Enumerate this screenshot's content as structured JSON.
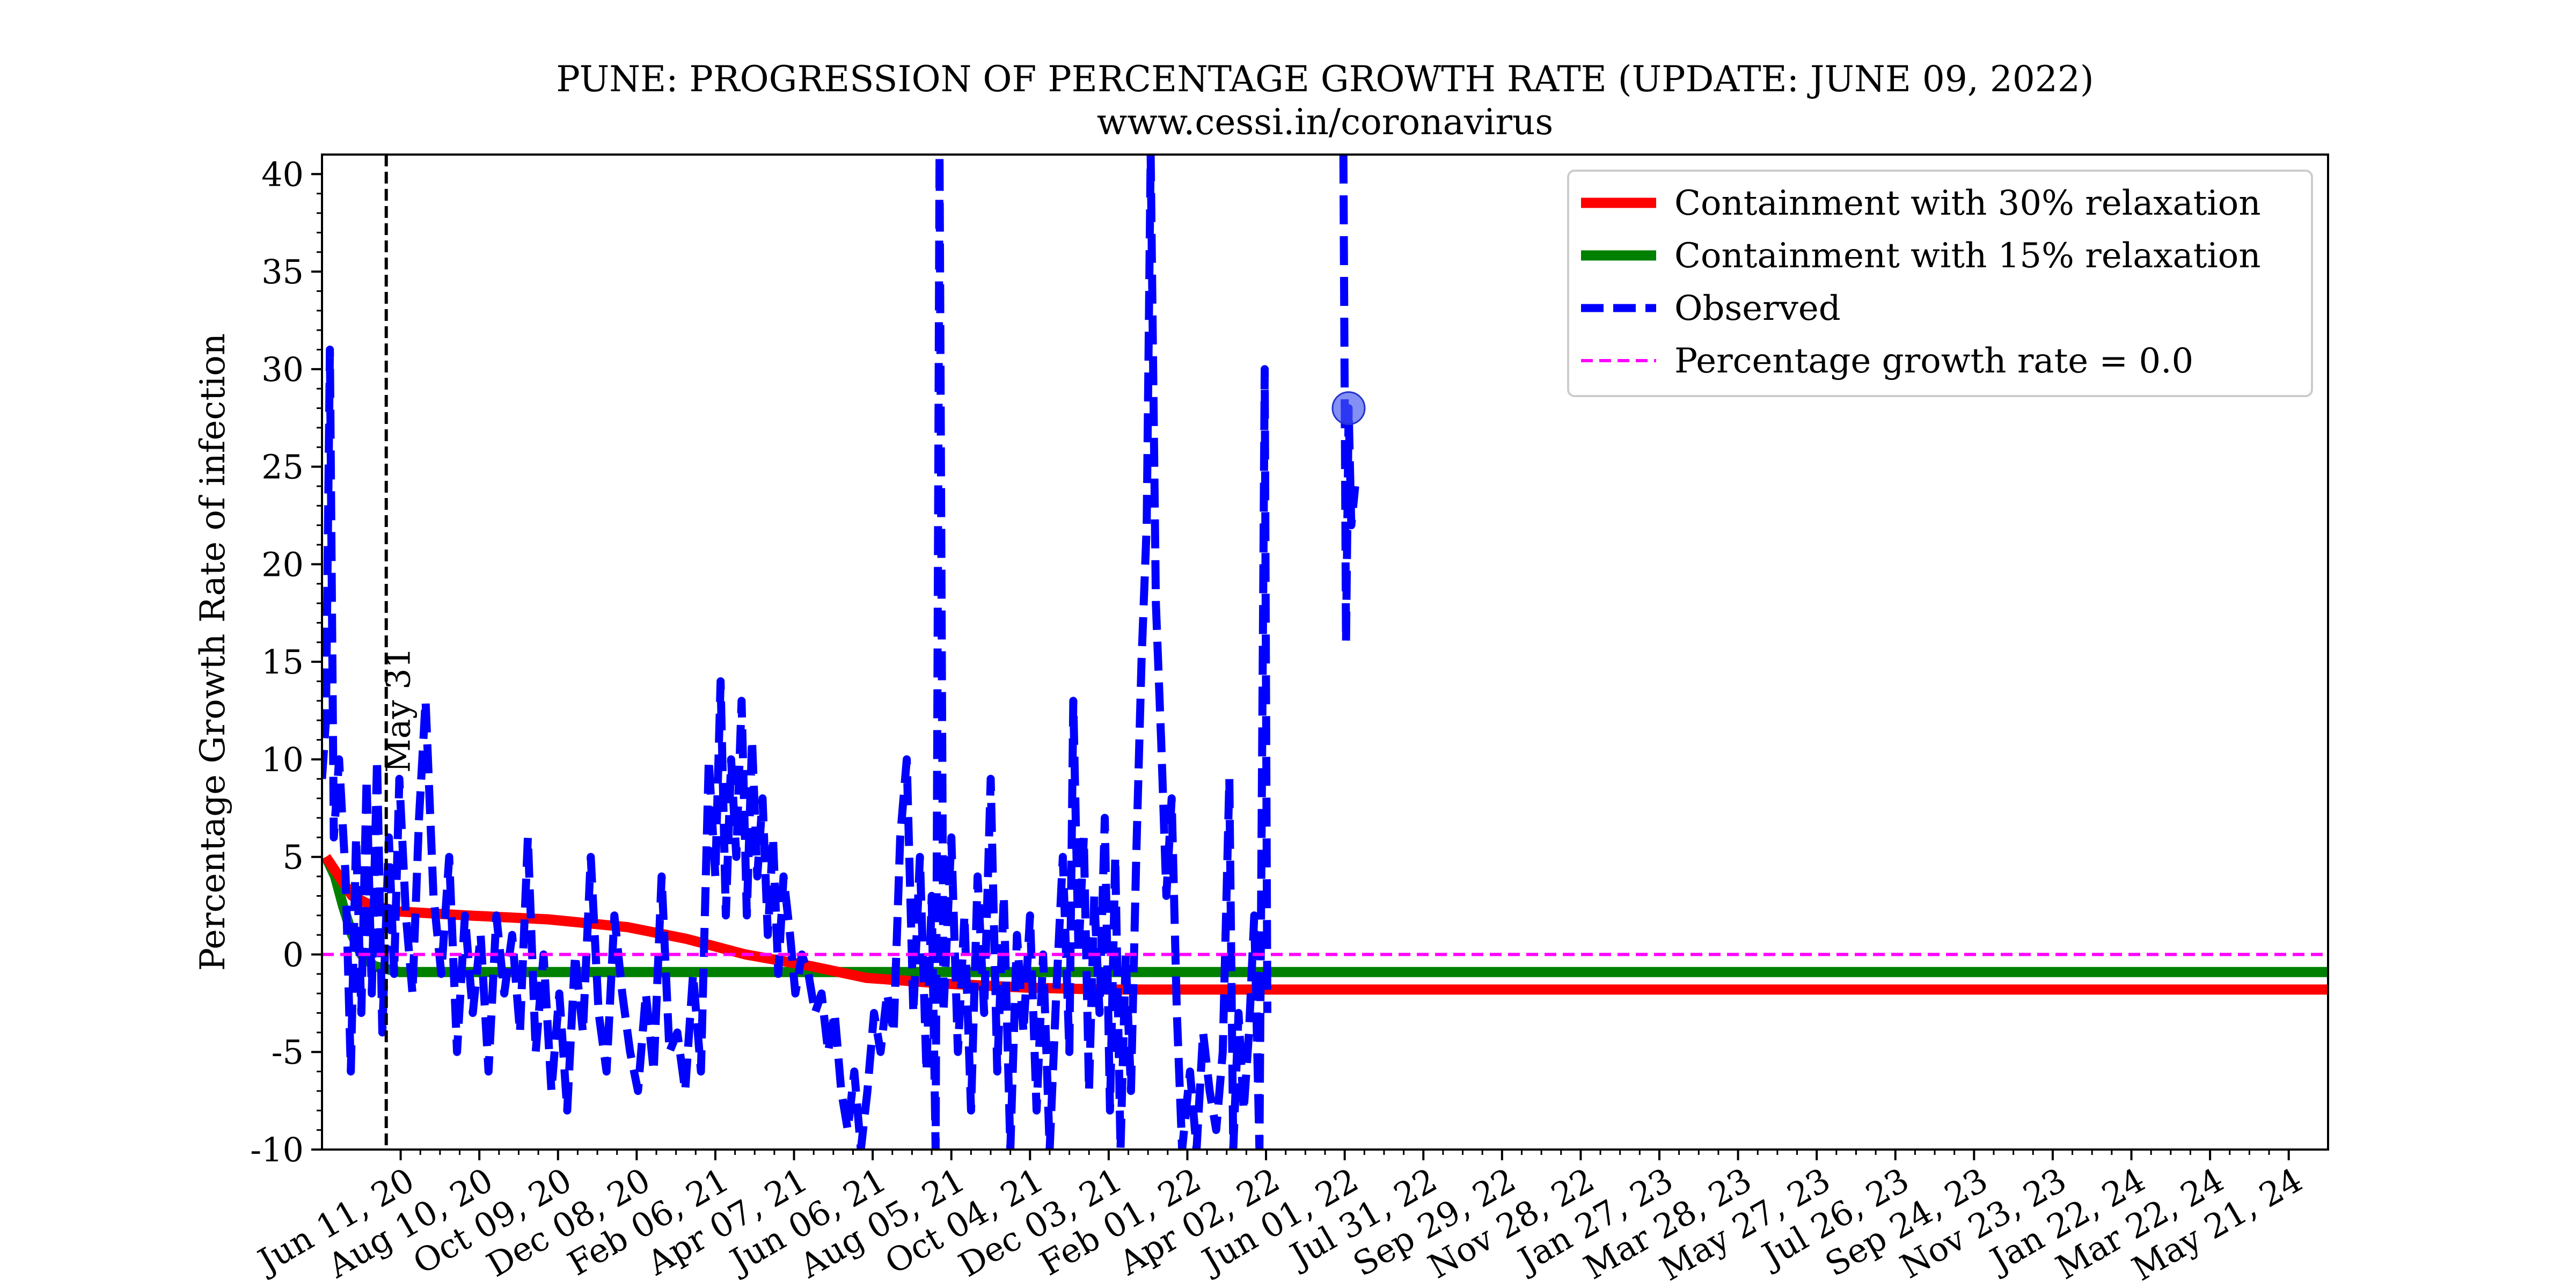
{
  "chart_data": {
    "type": "line",
    "title": "PUNE: PROGRESSION OF PERCENTAGE GROWTH RATE (UPDATE: JUNE 09, 2022)",
    "subtitle": "www.cessi.in/coronavirus",
    "ylabel": "Percentage Growth Rate of infection",
    "xlabel": "",
    "ylim": [
      -10,
      41
    ],
    "x_range": [
      "2020-04-12",
      "2024-06-20"
    ],
    "yticks": [
      -10,
      -5,
      0,
      5,
      10,
      15,
      20,
      25,
      30,
      35,
      40
    ],
    "x_tick_dates": [
      "2020-06-11",
      "2020-08-10",
      "2020-10-09",
      "2020-12-08",
      "2021-02-06",
      "2021-04-07",
      "2021-06-06",
      "2021-08-05",
      "2021-10-04",
      "2021-12-03",
      "2022-02-01",
      "2022-04-02",
      "2022-06-01",
      "2022-07-31",
      "2022-09-29",
      "2022-11-28",
      "2023-01-27",
      "2023-03-28",
      "2023-05-27",
      "2023-07-26",
      "2023-09-24",
      "2023-11-23",
      "2024-01-22",
      "2024-03-22",
      "2024-05-21"
    ],
    "x_tick_labels": [
      "Jun 11, 20",
      "Aug 10, 20",
      "Oct 09, 20",
      "Dec 08, 20",
      "Feb 06, 21",
      "Apr 07, 21",
      "Jun 06, 21",
      "Aug 05, 21",
      "Oct 04, 21",
      "Dec 03, 21",
      "Feb 01, 22",
      "Apr 02, 22",
      "Jun 01, 22",
      "Jul 31, 22",
      "Sep 29, 22",
      "Nov 28, 22",
      "Jan 27, 23",
      "Mar 28, 23",
      "May 27, 23",
      "Jul 26, 23",
      "Sep 24, 23",
      "Nov 23, 23",
      "Jan 22, 24",
      "Mar 22, 24",
      "May 21, 24"
    ],
    "vline": {
      "x": "2020-05-31",
      "label": "May 31"
    },
    "marker": {
      "x": "2022-06-04",
      "y": 28
    },
    "grid": false,
    "legend_position": "top-right",
    "series": [
      {
        "name": "Containment with 30% relaxation",
        "color": "#ff0000",
        "style": "solid",
        "points": [
          [
            "2020-04-15",
            5
          ],
          [
            "2020-04-25",
            4
          ],
          [
            "2020-05-05",
            3
          ],
          [
            "2020-05-20",
            2.5
          ],
          [
            "2020-06-10",
            2.2
          ],
          [
            "2020-08-01",
            2.0
          ],
          [
            "2020-10-01",
            1.8
          ],
          [
            "2020-12-01",
            1.4
          ],
          [
            "2021-01-15",
            0.8
          ],
          [
            "2021-03-01",
            0.0
          ],
          [
            "2021-04-20",
            -0.6
          ],
          [
            "2021-06-01",
            -1.2
          ],
          [
            "2021-08-01",
            -1.5
          ],
          [
            "2021-10-01",
            -1.7
          ],
          [
            "2021-12-01",
            -1.8
          ],
          [
            "2022-06-01",
            -1.8
          ],
          [
            "2024-06-20",
            -1.8
          ]
        ]
      },
      {
        "name": "Containment with 15% relaxation",
        "color": "#008000",
        "style": "solid",
        "points": [
          [
            "2020-04-15",
            5
          ],
          [
            "2020-04-22",
            4
          ],
          [
            "2020-04-28",
            2.5
          ],
          [
            "2020-05-05",
            1.0
          ],
          [
            "2020-05-12",
            0.0
          ],
          [
            "2020-05-22",
            -0.6
          ],
          [
            "2020-06-10",
            -0.9
          ],
          [
            "2020-08-01",
            -0.9
          ],
          [
            "2024-06-20",
            -0.9
          ]
        ]
      },
      {
        "name": "Observed",
        "color": "#0000ff",
        "style": "dashed",
        "points": [
          [
            "2020-04-12",
            9
          ],
          [
            "2020-04-15",
            12
          ],
          [
            "2020-04-18",
            31
          ],
          [
            "2020-04-21",
            6
          ],
          [
            "2020-04-25",
            10
          ],
          [
            "2020-04-30",
            4
          ],
          [
            "2020-05-04",
            -6
          ],
          [
            "2020-05-08",
            6
          ],
          [
            "2020-05-12",
            -3
          ],
          [
            "2020-05-16",
            9
          ],
          [
            "2020-05-20",
            -2
          ],
          [
            "2020-05-24",
            10
          ],
          [
            "2020-05-28",
            -4
          ],
          [
            "2020-06-02",
            6
          ],
          [
            "2020-06-06",
            -1
          ],
          [
            "2020-06-10",
            9
          ],
          [
            "2020-06-15",
            2
          ],
          [
            "2020-06-20",
            -2
          ],
          [
            "2020-06-25",
            7
          ],
          [
            "2020-06-30",
            13
          ],
          [
            "2020-07-06",
            3
          ],
          [
            "2020-07-12",
            -1
          ],
          [
            "2020-07-18",
            5
          ],
          [
            "2020-07-24",
            -5
          ],
          [
            "2020-07-30",
            2
          ],
          [
            "2020-08-05",
            -3
          ],
          [
            "2020-08-11",
            1
          ],
          [
            "2020-08-17",
            -6
          ],
          [
            "2020-08-23",
            2
          ],
          [
            "2020-08-29",
            -2
          ],
          [
            "2020-09-04",
            1
          ],
          [
            "2020-09-10",
            -4
          ],
          [
            "2020-09-16",
            6
          ],
          [
            "2020-09-22",
            -5
          ],
          [
            "2020-09-28",
            0
          ],
          [
            "2020-10-04",
            -7
          ],
          [
            "2020-10-10",
            -2
          ],
          [
            "2020-10-16",
            -8
          ],
          [
            "2020-10-22",
            0
          ],
          [
            "2020-10-28",
            -4
          ],
          [
            "2020-11-03",
            5
          ],
          [
            "2020-11-09",
            -3
          ],
          [
            "2020-11-15",
            -6
          ],
          [
            "2020-11-21",
            2
          ],
          [
            "2020-11-27",
            -2
          ],
          [
            "2020-12-03",
            -5
          ],
          [
            "2020-12-09",
            -7
          ],
          [
            "2020-12-15",
            -2
          ],
          [
            "2020-12-21",
            -6
          ],
          [
            "2020-12-27",
            4
          ],
          [
            "2021-01-02",
            -5
          ],
          [
            "2021-01-08",
            -4
          ],
          [
            "2021-01-14",
            -7
          ],
          [
            "2021-01-20",
            -1
          ],
          [
            "2021-01-26",
            -6
          ],
          [
            "2021-02-01",
            10
          ],
          [
            "2021-02-06",
            4
          ],
          [
            "2021-02-10",
            14
          ],
          [
            "2021-02-14",
            2
          ],
          [
            "2021-02-18",
            10
          ],
          [
            "2021-02-22",
            5
          ],
          [
            "2021-02-26",
            13
          ],
          [
            "2021-03-02",
            2
          ],
          [
            "2021-03-06",
            11
          ],
          [
            "2021-03-10",
            4
          ],
          [
            "2021-03-14",
            8
          ],
          [
            "2021-03-18",
            1
          ],
          [
            "2021-03-22",
            6
          ],
          [
            "2021-03-26",
            -1
          ],
          [
            "2021-03-30",
            4
          ],
          [
            "2021-04-04",
            1
          ],
          [
            "2021-04-08",
            -2
          ],
          [
            "2021-04-13",
            0
          ],
          [
            "2021-04-18",
            -1
          ],
          [
            "2021-04-23",
            -3
          ],
          [
            "2021-04-28",
            -2
          ],
          [
            "2021-05-03",
            -5
          ],
          [
            "2021-05-08",
            -3
          ],
          [
            "2021-05-13",
            -7
          ],
          [
            "2021-05-18",
            -9
          ],
          [
            "2021-05-23",
            -6
          ],
          [
            "2021-05-28",
            -10
          ],
          [
            "2021-06-02",
            -7
          ],
          [
            "2021-06-07",
            -3
          ],
          [
            "2021-06-12",
            -5
          ],
          [
            "2021-06-17",
            -2
          ],
          [
            "2021-06-22",
            -4
          ],
          [
            "2021-06-27",
            6
          ],
          [
            "2021-07-02",
            10
          ],
          [
            "2021-07-07",
            -3
          ],
          [
            "2021-07-12",
            5
          ],
          [
            "2021-07-17",
            -6
          ],
          [
            "2021-07-21",
            3
          ],
          [
            "2021-07-24",
            -10
          ],
          [
            "2021-07-27",
            41
          ],
          [
            "2021-07-30",
            -3
          ],
          [
            "2021-08-05",
            6
          ],
          [
            "2021-08-10",
            -5
          ],
          [
            "2021-08-15",
            2
          ],
          [
            "2021-08-20",
            -8
          ],
          [
            "2021-08-25",
            4
          ],
          [
            "2021-08-30",
            -3
          ],
          [
            "2021-09-04",
            9
          ],
          [
            "2021-09-09",
            -6
          ],
          [
            "2021-09-14",
            3
          ],
          [
            "2021-09-19",
            -10
          ],
          [
            "2021-09-24",
            1
          ],
          [
            "2021-09-29",
            -4
          ],
          [
            "2021-10-04",
            2
          ],
          [
            "2021-10-09",
            -8
          ],
          [
            "2021-10-14",
            0
          ],
          [
            "2021-10-19",
            -10
          ],
          [
            "2021-10-24",
            -2
          ],
          [
            "2021-10-29",
            5
          ],
          [
            "2021-11-03",
            -5
          ],
          [
            "2021-11-06",
            13
          ],
          [
            "2021-11-10",
            0
          ],
          [
            "2021-11-14",
            6
          ],
          [
            "2021-11-18",
            -7
          ],
          [
            "2021-11-22",
            3
          ],
          [
            "2021-11-26",
            -3
          ],
          [
            "2021-11-30",
            7
          ],
          [
            "2021-12-04",
            -8
          ],
          [
            "2021-12-08",
            5
          ],
          [
            "2021-12-12",
            -10
          ],
          [
            "2021-12-16",
            0
          ],
          [
            "2021-12-20",
            -7
          ],
          [
            "2021-12-24",
            5
          ],
          [
            "2021-12-28",
            15
          ],
          [
            "2022-01-01",
            22
          ],
          [
            "2022-01-04",
            41
          ],
          [
            "2022-01-08",
            18
          ],
          [
            "2022-01-12",
            11
          ],
          [
            "2022-01-16",
            3
          ],
          [
            "2022-01-20",
            8
          ],
          [
            "2022-01-24",
            -3
          ],
          [
            "2022-01-28",
            -10
          ],
          [
            "2022-02-03",
            -6
          ],
          [
            "2022-02-08",
            -10
          ],
          [
            "2022-02-13",
            -4
          ],
          [
            "2022-02-18",
            -7
          ],
          [
            "2022-02-23",
            -9
          ],
          [
            "2022-02-28",
            -5
          ],
          [
            "2022-03-05",
            9
          ],
          [
            "2022-03-08",
            -10
          ],
          [
            "2022-03-12",
            -3
          ],
          [
            "2022-03-16",
            -8
          ],
          [
            "2022-03-20",
            -4
          ],
          [
            "2022-03-24",
            2
          ],
          [
            "2022-03-28",
            -10
          ],
          [
            "2022-04-01",
            30
          ],
          [
            "2022-04-03",
            -3
          ],
          [
            "null",
            null
          ],
          [
            "2022-05-31",
            41
          ],
          [
            "2022-06-02",
            16
          ],
          [
            "2022-06-04",
            28
          ],
          [
            "2022-06-06",
            22
          ],
          [
            "2022-06-09",
            24
          ]
        ]
      },
      {
        "name": "Percentage growth rate = 0.0",
        "color": "#ff00ff",
        "style": "dashed-thin",
        "points": [
          [
            "2020-04-12",
            0
          ],
          [
            "2024-06-20",
            0
          ]
        ]
      }
    ]
  }
}
